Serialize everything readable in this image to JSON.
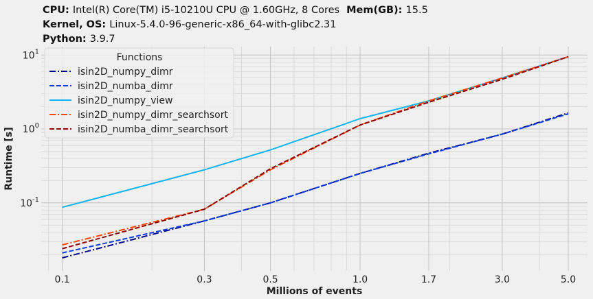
{
  "header": {
    "line1": [
      {
        "key": "CPU",
        "value": "Intel(R) Core(TM) i5-10210U CPU @ 1.60GHz, 8 Cores"
      },
      {
        "key": "Mem(GB)",
        "value": "15.5"
      }
    ],
    "line2": [
      {
        "key": "Kernel, OS",
        "value": "Linux-5.4.0-96-generic-x86_64-with-glibc2.31"
      }
    ],
    "line3": [
      {
        "key": "Python",
        "value": "3.9.7"
      }
    ]
  },
  "chart_data": {
    "type": "line",
    "xlabel": "Millions of events",
    "ylabel": "Runtime [s]",
    "xscale": "log",
    "yscale": "log",
    "xlim": [
      0.085,
      5.8
    ],
    "ylim": [
      0.012,
      13
    ],
    "grid": true,
    "xticks": [
      0.1,
      0.3,
      0.5,
      1.0,
      1.7,
      3.0,
      5.0
    ],
    "xtick_labels": [
      "0.1",
      "0.3",
      "0.5",
      "1.0",
      "1.7",
      "3.0",
      "5.0"
    ],
    "yticks": [
      0.1,
      1,
      10
    ],
    "legend": {
      "title": "Functions",
      "placement": "upper-left"
    },
    "x": [
      0.1,
      0.3,
      0.5,
      1.0,
      1.7,
      3.0,
      5.0
    ],
    "series": [
      {
        "name": "isin2D_numpy_dimr",
        "color": "#00008b",
        "dash": "dashdot",
        "values": [
          0.018,
          0.057,
          0.1,
          0.25,
          0.47,
          0.85,
          1.65
        ]
      },
      {
        "name": "isin2D_numba_dimr",
        "color": "#0a3cdc",
        "dash": "dashed",
        "values": [
          0.021,
          0.057,
          0.1,
          0.25,
          0.46,
          0.85,
          1.6
        ]
      },
      {
        "name": "isin2D_numpy_view",
        "color": "#10b4f0",
        "dash": "solid",
        "values": [
          0.087,
          0.28,
          0.52,
          1.38,
          2.4,
          4.9,
          9.5
        ]
      },
      {
        "name": "isin2D_numpy_dimr_searchsort",
        "color": "#ff4500",
        "dash": "dashdot",
        "values": [
          0.027,
          0.082,
          0.28,
          1.13,
          2.4,
          4.9,
          9.5
        ]
      },
      {
        "name": "isin2D_numba_dimr_searchsort",
        "color": "#8b0000",
        "dash": "dashed",
        "values": [
          0.024,
          0.082,
          0.29,
          1.13,
          2.3,
          4.7,
          9.5
        ]
      }
    ]
  }
}
